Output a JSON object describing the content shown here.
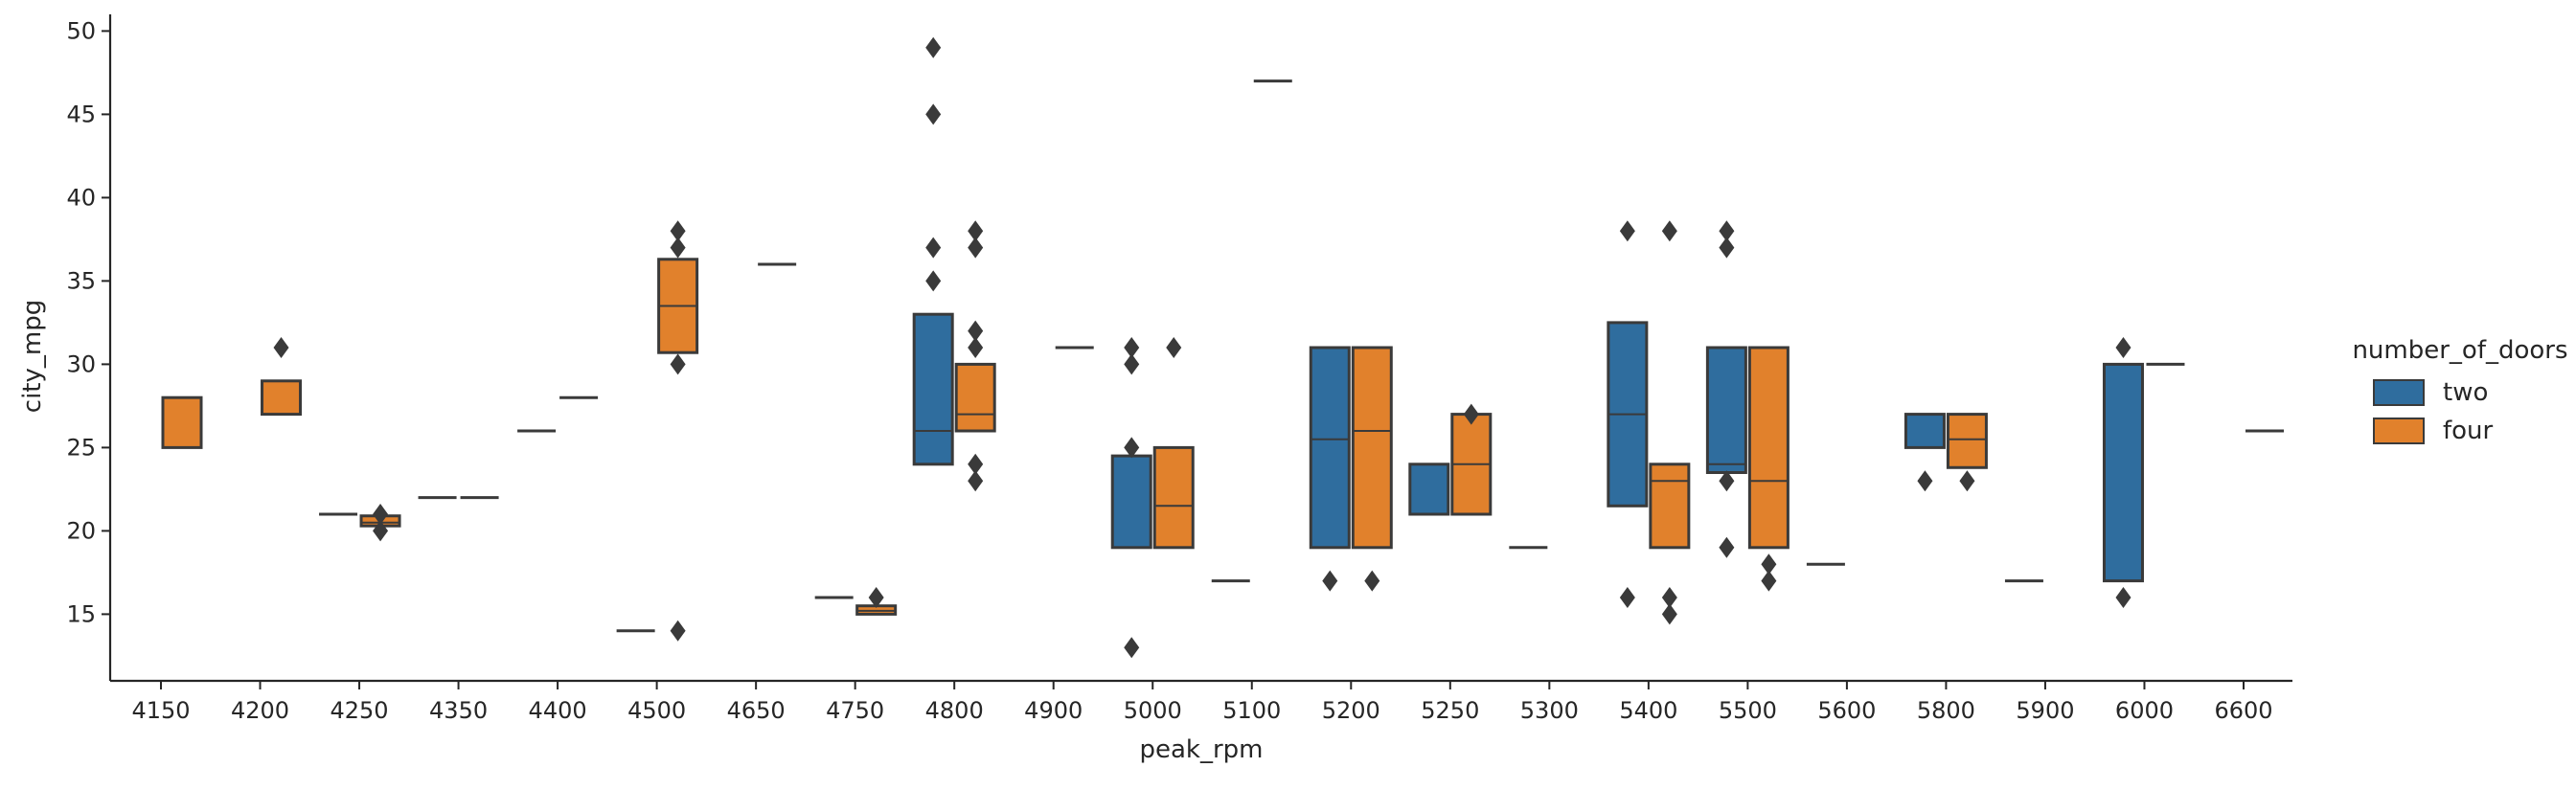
{
  "chart_data": {
    "type": "boxen",
    "xlabel": "peak_rpm",
    "ylabel": "city_mpg",
    "categories": [
      "4150",
      "4200",
      "4250",
      "4350",
      "4400",
      "4500",
      "4650",
      "4750",
      "4800",
      "4900",
      "5000",
      "5100",
      "5200",
      "5250",
      "5300",
      "5400",
      "5500",
      "5600",
      "5800",
      "5900",
      "6000",
      "6600"
    ],
    "ylim": [
      11,
      51
    ],
    "yticks": [
      15,
      20,
      25,
      30,
      35,
      40,
      45,
      50
    ],
    "legend": {
      "title": "number_of_doors",
      "placement": "right",
      "entries": [
        {
          "label": "two",
          "color": "#2f6d9e"
        },
        {
          "label": "four",
          "color": "#e1812c"
        }
      ]
    },
    "series": [
      {
        "name": "two",
        "color": "#2f6d9e",
        "boxes": [
          {
            "category": "4250",
            "low": 21,
            "high": 21,
            "median": 21,
            "outliers": []
          },
          {
            "category": "4350",
            "low": 22,
            "high": 22,
            "median": 22,
            "outliers": []
          },
          {
            "category": "4400",
            "low": 26,
            "high": 26,
            "median": 26,
            "outliers": []
          },
          {
            "category": "4500",
            "low": 14,
            "high": 14,
            "median": 14,
            "outliers": []
          },
          {
            "category": "4750",
            "low": 16,
            "high": 16,
            "median": 16,
            "outliers": []
          },
          {
            "category": "4800",
            "low": 24,
            "high": 33,
            "median": 26,
            "outliers": [
              35,
              37,
              45,
              49
            ]
          },
          {
            "category": "5000",
            "low": 19,
            "high": 24.5,
            "median": 19,
            "outliers": [
              13,
              25,
              30,
              31
            ]
          },
          {
            "category": "5100",
            "low": 17,
            "high": 17,
            "median": 17,
            "outliers": []
          },
          {
            "category": "5200",
            "low": 19,
            "high": 31,
            "median": 25.5,
            "outliers": [
              17
            ]
          },
          {
            "category": "5250",
            "low": 21,
            "high": 24,
            "median": 21,
            "outliers": []
          },
          {
            "category": "5300",
            "low": 19,
            "high": 19,
            "median": 19,
            "outliers": []
          },
          {
            "category": "5400",
            "low": 21.5,
            "high": 32.5,
            "median": 27,
            "outliers": [
              16,
              38
            ]
          },
          {
            "category": "5500",
            "low": 23.5,
            "high": 31,
            "median": 24,
            "outliers": [
              19,
              23,
              37,
              38
            ]
          },
          {
            "category": "5600",
            "low": 18,
            "high": 18,
            "median": 18,
            "outliers": []
          },
          {
            "category": "5800",
            "low": 25,
            "high": 27,
            "median": 27,
            "outliers": [
              23
            ]
          },
          {
            "category": "5900",
            "low": 17,
            "high": 17,
            "median": 17,
            "outliers": []
          },
          {
            "category": "6000",
            "low": 17,
            "high": 30,
            "median": 30,
            "outliers": [
              16,
              31
            ]
          }
        ]
      },
      {
        "name": "four",
        "color": "#e1812c",
        "boxes": [
          {
            "category": "4150",
            "low": 25,
            "high": 28,
            "median": 28,
            "outliers": []
          },
          {
            "category": "4200",
            "low": 27,
            "high": 29,
            "median": 27,
            "outliers": [
              31
            ]
          },
          {
            "category": "4250",
            "low": 20.3,
            "high": 20.9,
            "median": 20.5,
            "outliers": [
              20,
              21
            ]
          },
          {
            "category": "4350",
            "low": 22,
            "high": 22,
            "median": 22,
            "outliers": []
          },
          {
            "category": "4400",
            "low": 28,
            "high": 28,
            "median": 28,
            "outliers": []
          },
          {
            "category": "4500",
            "low": 30.7,
            "high": 36.3,
            "median": 33.5,
            "outliers": [
              14,
              30,
              37,
              38
            ]
          },
          {
            "category": "4650",
            "low": 36,
            "high": 36,
            "median": 36,
            "outliers": []
          },
          {
            "category": "4750",
            "low": 15,
            "high": 15.5,
            "median": 15.2,
            "outliers": [
              16
            ]
          },
          {
            "category": "4800",
            "low": 26,
            "high": 30,
            "median": 27,
            "outliers": [
              23,
              24,
              31,
              32,
              37,
              38
            ]
          },
          {
            "category": "4900",
            "low": 31,
            "high": 31,
            "median": 31,
            "outliers": []
          },
          {
            "category": "5000",
            "low": 19,
            "high": 25,
            "median": 21.5,
            "outliers": [
              31
            ]
          },
          {
            "category": "5100",
            "low": 47,
            "high": 47,
            "median": 47,
            "outliers": []
          },
          {
            "category": "5200",
            "low": 19,
            "high": 31,
            "median": 26,
            "outliers": [
              17
            ]
          },
          {
            "category": "5250",
            "low": 21,
            "high": 27,
            "median": 24,
            "outliers": [
              27
            ]
          },
          {
            "category": "5400",
            "low": 19,
            "high": 24,
            "median": 23,
            "outliers": [
              15,
              16,
              38
            ]
          },
          {
            "category": "5500",
            "low": 19,
            "high": 31,
            "median": 23,
            "outliers": [
              17,
              18
            ]
          },
          {
            "category": "5800",
            "low": 23.8,
            "high": 27,
            "median": 25.5,
            "outliers": [
              23
            ]
          },
          {
            "category": "6000",
            "low": 30,
            "high": 30,
            "median": 30,
            "outliers": []
          },
          {
            "category": "6600",
            "low": 26,
            "high": 26,
            "median": 26,
            "outliers": []
          }
        ]
      }
    ]
  }
}
